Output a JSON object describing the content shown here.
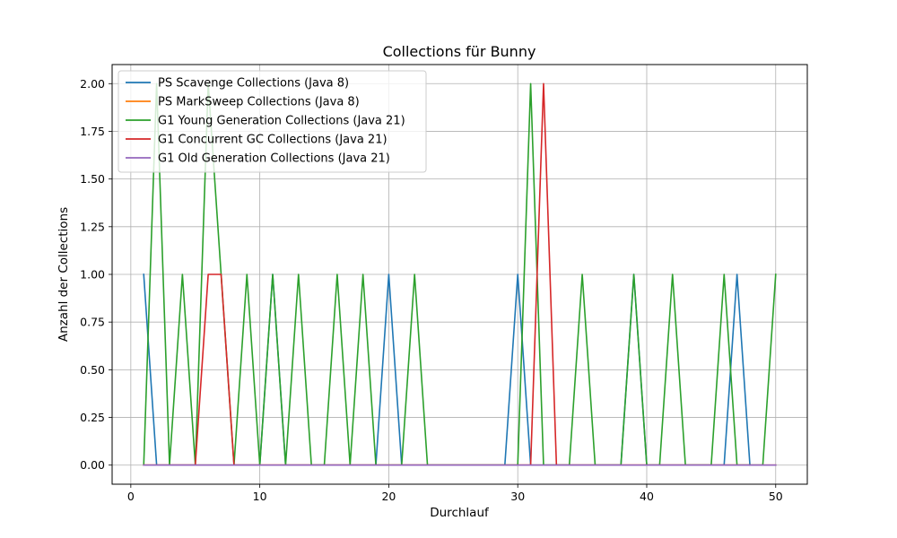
{
  "chart_data": {
    "type": "line",
    "title": "Collections für Bunny",
    "xlabel": "Durchlauf",
    "ylabel": "Anzahl der Collections",
    "xlim": [
      -1.45,
      52.45
    ],
    "ylim": [
      -0.1,
      2.1
    ],
    "xticks": [
      0,
      10,
      20,
      30,
      40,
      50
    ],
    "yticks": [
      0.0,
      0.25,
      0.5,
      0.75,
      1.0,
      1.25,
      1.5,
      1.75,
      2.0
    ],
    "ytick_labels": [
      "0.00",
      "0.25",
      "0.50",
      "0.75",
      "1.00",
      "1.25",
      "1.50",
      "1.75",
      "2.00"
    ],
    "grid": true,
    "legend_position": "top-left",
    "x": [
      1,
      2,
      3,
      4,
      5,
      6,
      7,
      8,
      9,
      10,
      11,
      12,
      13,
      14,
      15,
      16,
      17,
      18,
      19,
      20,
      21,
      22,
      23,
      24,
      25,
      26,
      27,
      28,
      29,
      30,
      31,
      32,
      33,
      34,
      35,
      36,
      37,
      38,
      39,
      40,
      41,
      42,
      43,
      44,
      45,
      46,
      47,
      48,
      49,
      50
    ],
    "series": [
      {
        "name": "PS Scavenge Collections (Java 8)",
        "color": "#1f77b4",
        "x": [
          1,
          2,
          3,
          4,
          5,
          6,
          7,
          8,
          9,
          10,
          11,
          12,
          13,
          14,
          15,
          16,
          17,
          18,
          19,
          20,
          21,
          22,
          23,
          24,
          25,
          26,
          27,
          28,
          29,
          30,
          31,
          32,
          33,
          34,
          35,
          36,
          37,
          38,
          39,
          40,
          41,
          42,
          43,
          44,
          45,
          46,
          47,
          48
        ],
        "values": [
          1,
          0,
          0,
          0,
          0,
          0,
          0,
          0,
          0,
          0,
          1,
          0,
          0,
          0,
          0,
          0,
          0,
          0,
          0,
          1,
          0,
          0,
          0,
          0,
          0,
          0,
          0,
          0,
          0,
          1,
          0,
          0,
          0,
          0,
          0,
          0,
          0,
          0,
          1,
          0,
          0,
          0,
          0,
          0,
          0,
          0,
          1,
          0
        ]
      },
      {
        "name": "PS MarkSweep Collections (Java 8)",
        "color": "#ff7f0e",
        "x": [
          1,
          2,
          3,
          4,
          5,
          6,
          7,
          8,
          9,
          10,
          11,
          12,
          13,
          14,
          15,
          16,
          17,
          18,
          19,
          20,
          21,
          22,
          23,
          24,
          25,
          26,
          27,
          28,
          29,
          30,
          31,
          32,
          33,
          34,
          35,
          36,
          37,
          38,
          39,
          40,
          41,
          42,
          43,
          44,
          45,
          46,
          47,
          48
        ],
        "values": [
          0,
          0,
          0,
          0,
          0,
          0,
          0,
          0,
          0,
          0,
          0,
          0,
          0,
          0,
          0,
          0,
          0,
          0,
          0,
          0,
          0,
          0,
          0,
          0,
          0,
          0,
          0,
          0,
          0,
          0,
          0,
          0,
          0,
          0,
          0,
          0,
          0,
          0,
          0,
          0,
          0,
          0,
          0,
          0,
          0,
          0,
          0,
          0
        ]
      },
      {
        "name": "G1 Young Generation Collections (Java 21)",
        "color": "#2ca02c",
        "x": [
          1,
          2,
          3,
          4,
          5,
          6,
          7,
          8,
          9,
          10,
          11,
          12,
          13,
          14,
          15,
          16,
          17,
          18,
          19,
          20,
          21,
          22,
          23,
          24,
          25,
          26,
          27,
          28,
          29,
          30,
          31,
          32,
          33,
          34,
          35,
          36,
          37,
          38,
          39,
          40,
          41,
          42,
          43,
          44,
          45,
          46,
          47,
          48,
          49,
          50
        ],
        "values": [
          0,
          2,
          0,
          1,
          0,
          2,
          1,
          0,
          1,
          0,
          1,
          0,
          1,
          0,
          0,
          1,
          0,
          1,
          0,
          0,
          0,
          1,
          0,
          0,
          0,
          0,
          0,
          0,
          0,
          0,
          2,
          0,
          0,
          0,
          1,
          0,
          0,
          0,
          1,
          0,
          0,
          1,
          0,
          0,
          0,
          1,
          0,
          0,
          0,
          1
        ]
      },
      {
        "name": "G1 Concurrent GC Collections (Java 21)",
        "color": "#d62728",
        "x": [
          1,
          2,
          3,
          4,
          5,
          6,
          7,
          8,
          9,
          10,
          11,
          12,
          13,
          14,
          15,
          16,
          17,
          18,
          19,
          20,
          21,
          22,
          23,
          24,
          25,
          26,
          27,
          28,
          29,
          30,
          31,
          32,
          33,
          34,
          35,
          36,
          37,
          38,
          39,
          40,
          41,
          42,
          43,
          44,
          45,
          46,
          47,
          48,
          49,
          50
        ],
        "values": [
          0,
          0,
          0,
          0,
          0,
          1,
          1,
          0,
          0,
          0,
          0,
          0,
          0,
          0,
          0,
          0,
          0,
          0,
          0,
          0,
          0,
          0,
          0,
          0,
          0,
          0,
          0,
          0,
          0,
          0,
          0,
          2,
          0,
          0,
          0,
          0,
          0,
          0,
          0,
          0,
          0,
          0,
          0,
          0,
          0,
          0,
          0,
          0,
          0,
          0
        ]
      },
      {
        "name": "G1 Old Generation Collections (Java 21)",
        "color": "#9467bd",
        "x": [
          1,
          2,
          3,
          4,
          5,
          6,
          7,
          8,
          9,
          10,
          11,
          12,
          13,
          14,
          15,
          16,
          17,
          18,
          19,
          20,
          21,
          22,
          23,
          24,
          25,
          26,
          27,
          28,
          29,
          30,
          31,
          32,
          33,
          34,
          35,
          36,
          37,
          38,
          39,
          40,
          41,
          42,
          43,
          44,
          45,
          46,
          47,
          48,
          49,
          50
        ],
        "values": [
          0,
          0,
          0,
          0,
          0,
          0,
          0,
          0,
          0,
          0,
          0,
          0,
          0,
          0,
          0,
          0,
          0,
          0,
          0,
          0,
          0,
          0,
          0,
          0,
          0,
          0,
          0,
          0,
          0,
          0,
          0,
          0,
          0,
          0,
          0,
          0,
          0,
          0,
          0,
          0,
          0,
          0,
          0,
          0,
          0,
          0,
          0,
          0,
          0,
          0
        ]
      }
    ]
  }
}
